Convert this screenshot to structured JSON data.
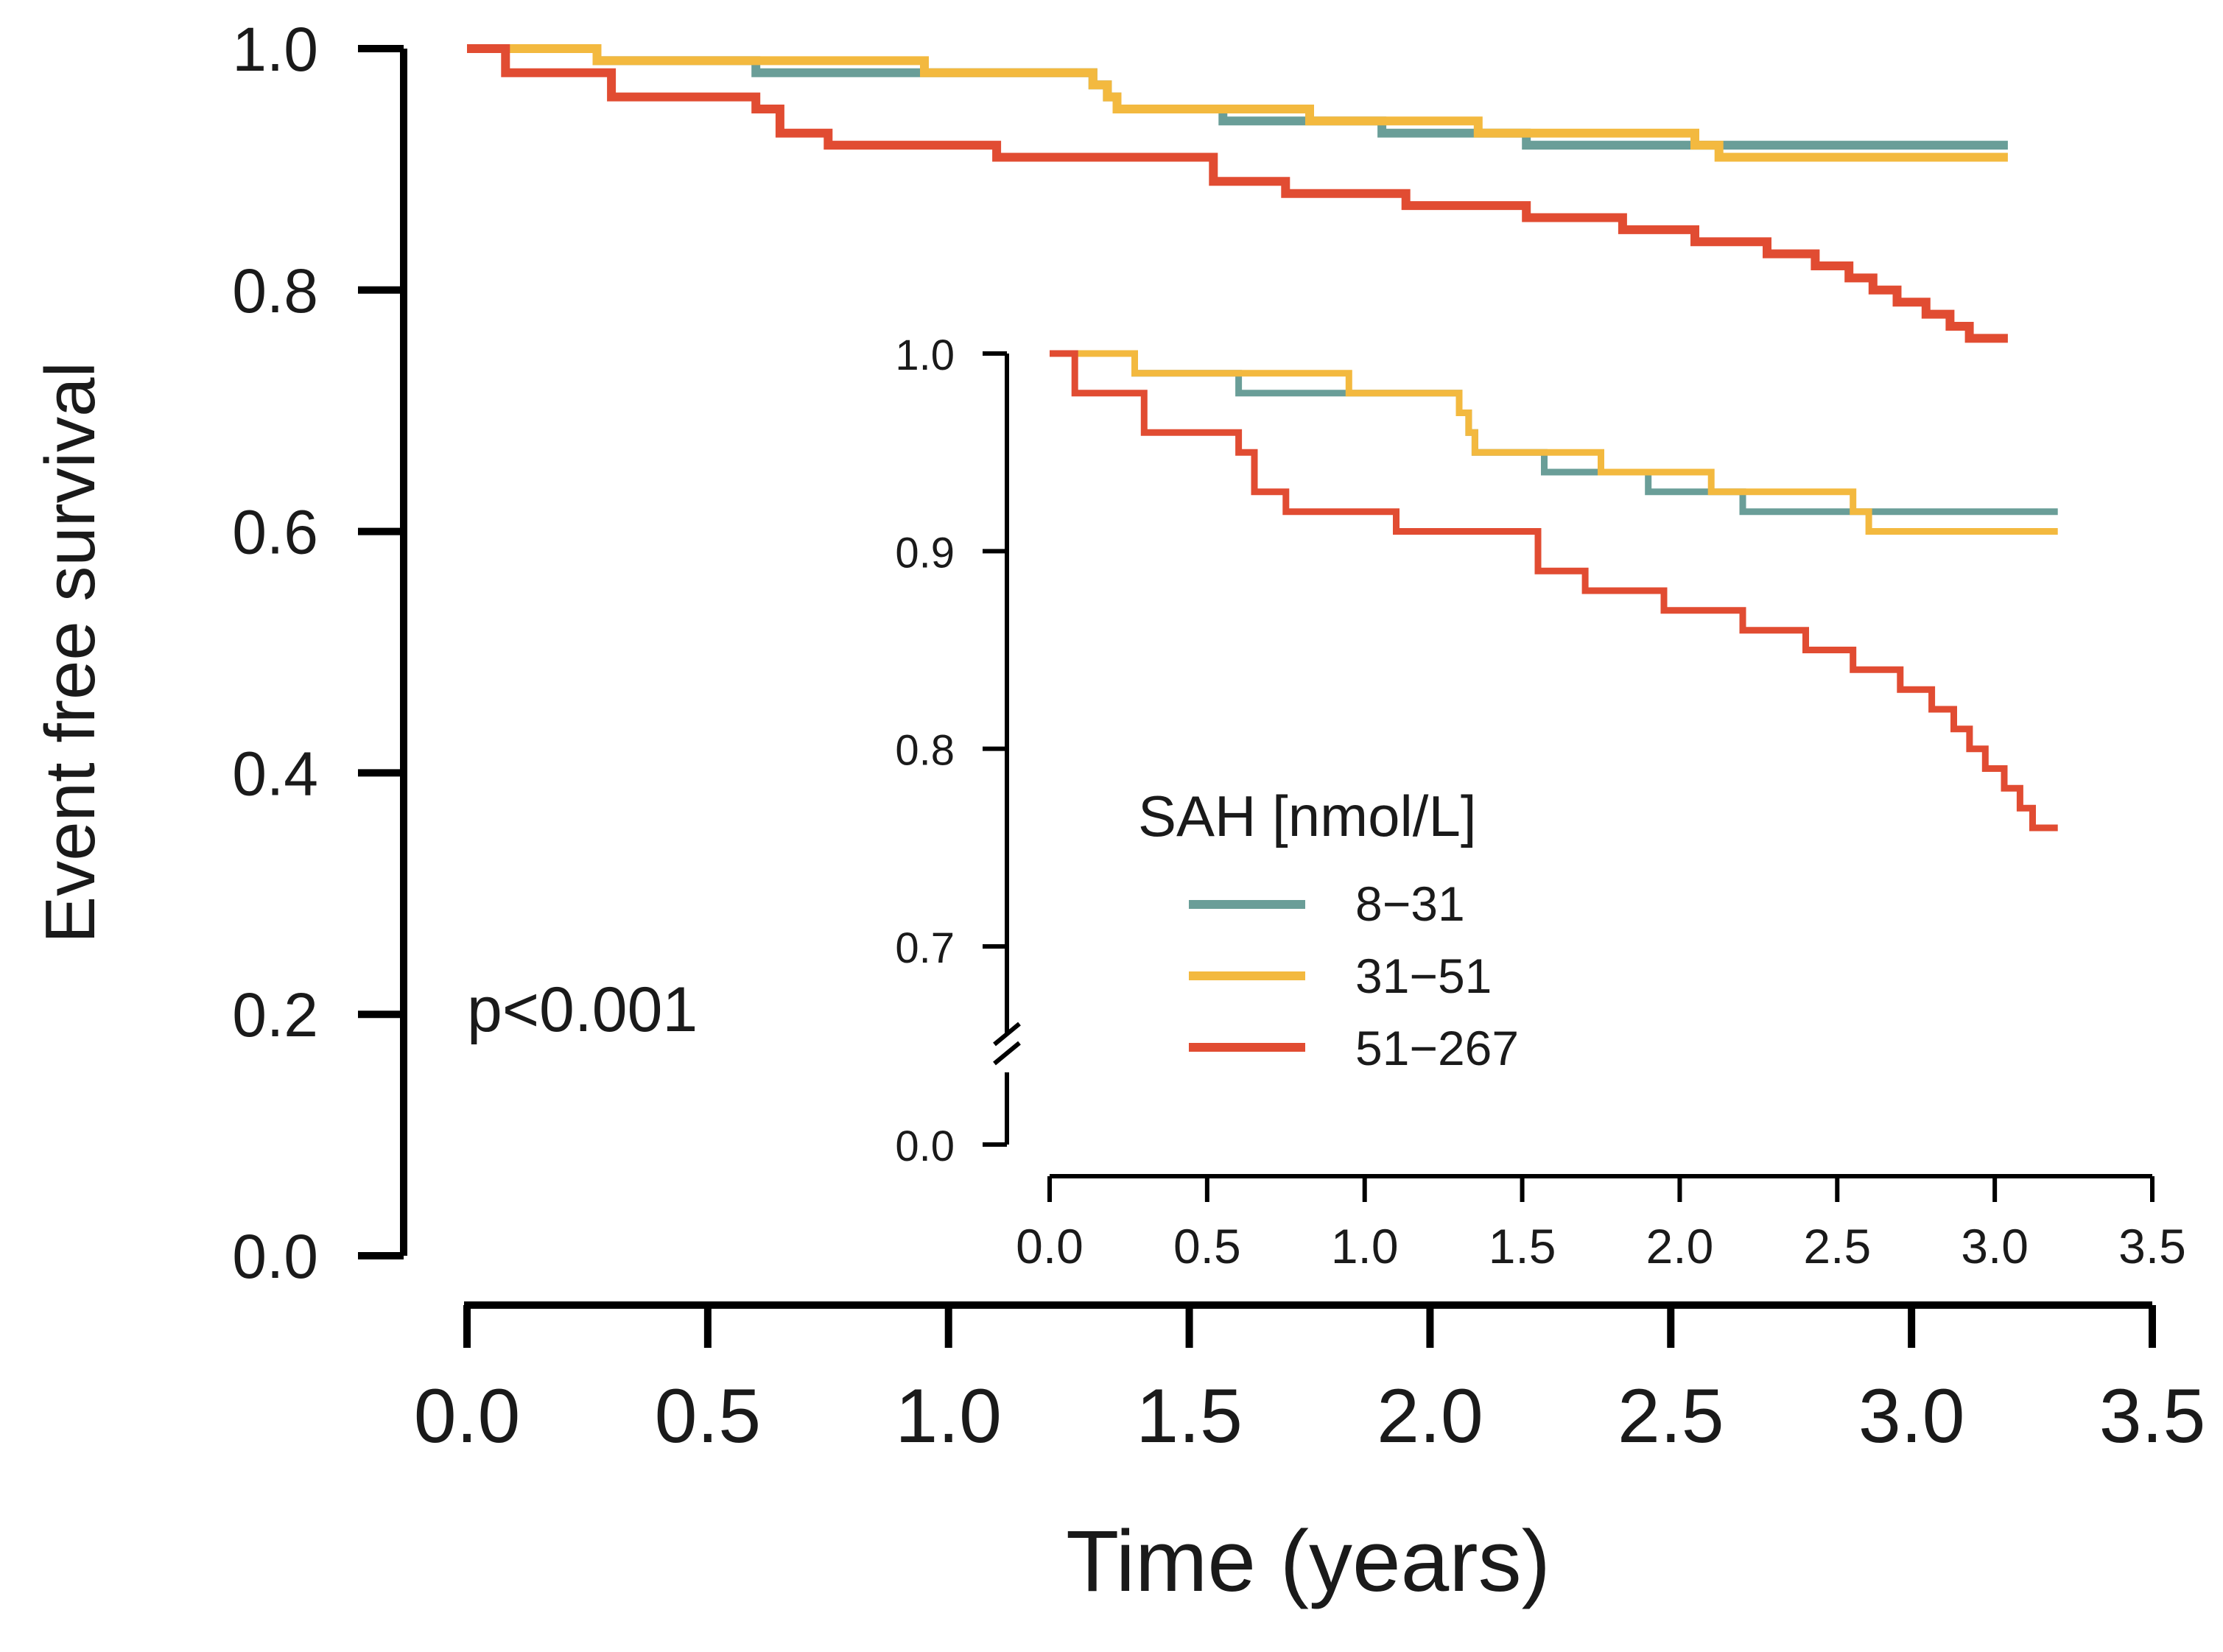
{
  "chart_data": [
    {
      "id": "main",
      "type": "step",
      "title": "",
      "xlabel": "Time (years)",
      "ylabel": "Event free survival",
      "xlim": [
        0.0,
        3.5
      ],
      "ylim": [
        0.0,
        1.0
      ],
      "x_ticks": [
        "0.0",
        "0.5",
        "1.0",
        "1.5",
        "2.0",
        "2.5",
        "3.0",
        "3.5"
      ],
      "y_ticks": [
        "0.0",
        "0.2",
        "0.4",
        "0.6",
        "0.8",
        "1.0"
      ],
      "annotation": "p<0.001",
      "series": [
        {
          "name": "8−31",
          "color": "#6a9e98",
          "x": [
            0.0,
            0.27,
            0.6,
            1.3,
            1.33,
            1.35,
            1.57,
            1.9,
            2.2,
            2.9,
            3.2
          ],
          "y": [
            1.0,
            0.99,
            0.98,
            0.97,
            0.96,
            0.95,
            0.94,
            0.93,
            0.92,
            0.92,
            0.92
          ]
        },
        {
          "name": "31−51",
          "color": "#f3b93f",
          "x": [
            0.0,
            0.27,
            0.95,
            1.3,
            1.33,
            1.35,
            1.75,
            2.1,
            2.55,
            2.6,
            3.2
          ],
          "y": [
            1.0,
            0.99,
            0.98,
            0.97,
            0.96,
            0.95,
            0.94,
            0.93,
            0.92,
            0.91,
            0.91
          ]
        },
        {
          "name": "51−267",
          "color": "#e14c32",
          "x": [
            0.0,
            0.08,
            0.3,
            0.6,
            0.65,
            0.75,
            1.1,
            1.55,
            1.7,
            1.95,
            2.2,
            2.4,
            2.55,
            2.7,
            2.8,
            2.87,
            2.92,
            2.97,
            3.03,
            3.08,
            3.12,
            3.2
          ],
          "y": [
            1.0,
            0.98,
            0.96,
            0.95,
            0.93,
            0.92,
            0.91,
            0.89,
            0.88,
            0.87,
            0.86,
            0.85,
            0.84,
            0.83,
            0.82,
            0.81,
            0.8,
            0.79,
            0.78,
            0.77,
            0.76,
            0.76
          ]
        }
      ]
    },
    {
      "id": "inset",
      "type": "step",
      "title": "",
      "xlabel": "",
      "ylabel": "",
      "xlim": [
        0.0,
        3.5
      ],
      "ylim": [
        0.7,
        1.0
      ],
      "axis_break": true,
      "x_ticks": [
        "0.0",
        "0.5",
        "1.0",
        "1.5",
        "2.0",
        "2.5",
        "3.0",
        "3.5"
      ],
      "y_ticks": [
        "0.0",
        "0.7",
        "0.8",
        "0.9",
        "1.0"
      ],
      "legend": {
        "title": "SAH [nmol/L]",
        "entries": [
          "8−31",
          "31−51",
          "51−267"
        ],
        "position": "bottom-left"
      }
    }
  ]
}
